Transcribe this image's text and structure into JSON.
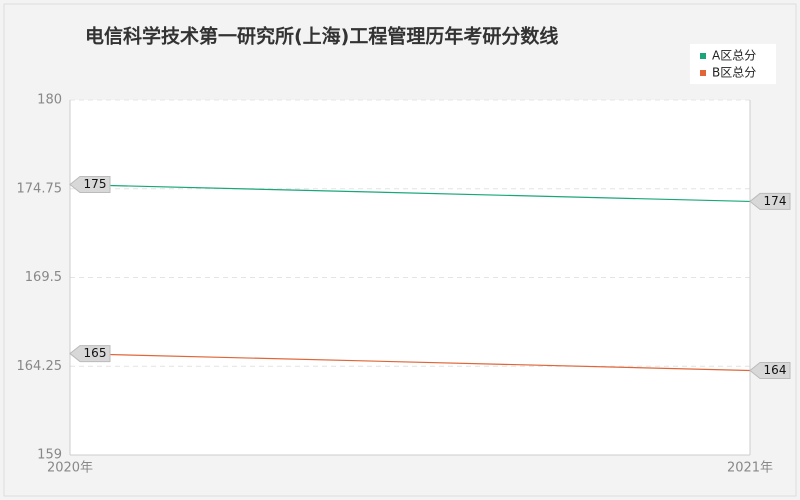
{
  "chart_data": {
    "type": "line",
    "title": "电信科学技术第一研究所(上海)工程管理历年考研分数线",
    "categories": [
      "2020年",
      "2021年"
    ],
    "series": [
      {
        "name": "A区总分",
        "color": "#1aa67a",
        "values": [
          175,
          174
        ]
      },
      {
        "name": "B区总分",
        "color": "#e0663a",
        "values": [
          165,
          164
        ]
      }
    ],
    "ylim": [
      159,
      180
    ],
    "yticks": [
      159,
      164.25,
      169.5,
      174.75,
      180
    ],
    "grid": true,
    "legend": "top-right"
  }
}
